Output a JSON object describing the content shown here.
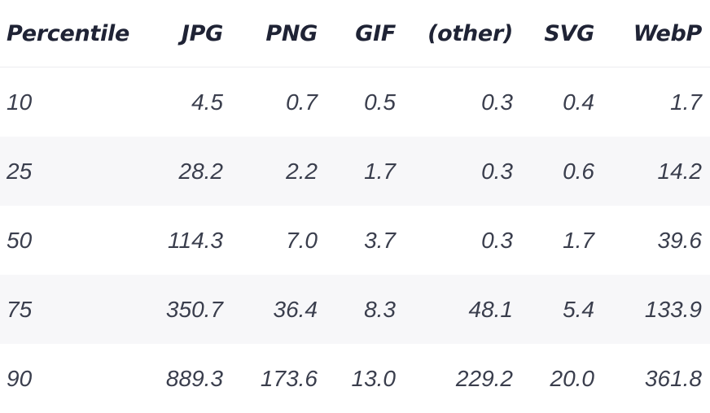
{
  "table": {
    "columns": [
      "Percentile",
      "JPG",
      "PNG",
      "GIF",
      "(other)",
      "SVG",
      "WebP"
    ],
    "rows": [
      [
        "10",
        "4.5",
        "0.7",
        "0.5",
        "0.3",
        "0.4",
        "1.7"
      ],
      [
        "25",
        "28.2",
        "2.2",
        "1.7",
        "0.3",
        "0.6",
        "14.2"
      ],
      [
        "50",
        "114.3",
        "7.0",
        "3.7",
        "0.3",
        "1.7",
        "39.6"
      ],
      [
        "75",
        "350.7",
        "36.4",
        "8.3",
        "48.1",
        "5.4",
        "133.9"
      ],
      [
        "90",
        "889.3",
        "173.6",
        "13.0",
        "229.2",
        "20.0",
        "361.8"
      ]
    ]
  },
  "colors": {
    "header_text": "#1f2335",
    "cell_text": "#3a3e4d",
    "stripe": "#f7f7f9",
    "divider": "#ececef"
  }
}
